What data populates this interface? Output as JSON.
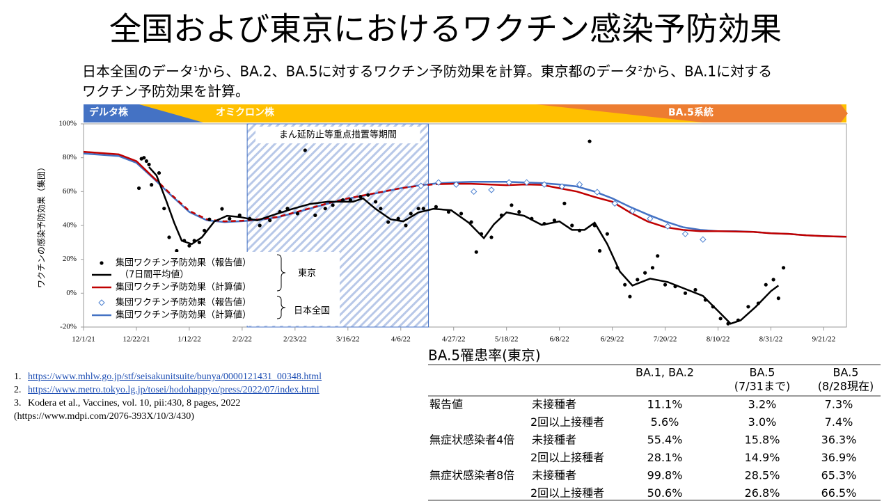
{
  "title": "全国および東京におけるワクチン感染予防効果",
  "subtitle": [
    "日本全国のデータ",
    "1",
    "から、BA.2、BA.5に対するワクチン予防効果を計算。東京都のデータ",
    "2",
    "から、BA.1に対するワクチン予防効果を計算。"
  ],
  "chart_data": {
    "type": "line",
    "ylabel": "ワクチンの感染予防効果（集団）",
    "variant_bands": [
      "デルタ株",
      "オミクロン株",
      "BA.5系統"
    ],
    "shaded_period": {
      "label": "まん延防止等重点措置等期間",
      "start": "2022-02-04",
      "end": "2022-04-17"
    },
    "xlim": [
      "2021-12-01",
      "2022-09-30"
    ],
    "xticks": [
      {
        "value": "2021-12-01",
        "label": "12/1/21"
      },
      {
        "value": "2021-12-22",
        "label": "12/22/21"
      },
      {
        "value": "2022-01-12",
        "label": "1/12/22"
      },
      {
        "value": "2022-02-02",
        "label": "2/2/22"
      },
      {
        "value": "2022-02-23",
        "label": "2/23/22"
      },
      {
        "value": "2022-03-16",
        "label": "3/16/22"
      },
      {
        "value": "2022-04-06",
        "label": "4/6/22"
      },
      {
        "value": "2022-04-27",
        "label": "4/27/22"
      },
      {
        "value": "2022-05-18",
        "label": "5/18/22"
      },
      {
        "value": "2022-06-08",
        "label": "6/8/22"
      },
      {
        "value": "2022-06-29",
        "label": "6/29/22"
      },
      {
        "value": "2022-07-20",
        "label": "7/20/22"
      },
      {
        "value": "2022-08-10",
        "label": "8/10/22"
      },
      {
        "value": "2022-08-31",
        "label": "8/31/22"
      },
      {
        "value": "2022-09-21",
        "label": "9/21/22"
      }
    ],
    "ylim": [
      -20,
      100
    ],
    "yticks": [
      {
        "value": -20,
        "label": "-20%"
      },
      {
        "value": 0,
        "label": "0%"
      },
      {
        "value": 20,
        "label": "20%"
      },
      {
        "value": 40,
        "label": "40%"
      },
      {
        "value": 60,
        "label": "60%"
      },
      {
        "value": 80,
        "label": "80%"
      },
      {
        "value": 100,
        "label": "100%"
      }
    ],
    "grid": false,
    "legend_groups": [
      "東京",
      "日本全国"
    ],
    "series": [
      {
        "name": "集団ワクチン予防効果（報告値）",
        "type": "scatter",
        "marker": "circle",
        "color": "#000000",
        "x": [
          "2021-12-23",
          "2021-12-24",
          "2021-12-25",
          "2021-12-26",
          "2021-12-27",
          "2021-12-28",
          "2021-12-31",
          "2022-01-02",
          "2022-01-04",
          "2022-01-07",
          "2022-01-10",
          "2022-01-12",
          "2022-01-14",
          "2022-01-16",
          "2022-01-18",
          "2022-01-20",
          "2022-01-25",
          "2022-01-28",
          "2022-02-01",
          "2022-02-05",
          "2022-02-09",
          "2022-02-13",
          "2022-02-17",
          "2022-02-20",
          "2022-02-24",
          "2022-02-27",
          "2022-03-03",
          "2022-03-07",
          "2022-03-10",
          "2022-03-14",
          "2022-03-17",
          "2022-03-21",
          "2022-03-24",
          "2022-03-27",
          "2022-03-29",
          "2022-04-01",
          "2022-04-05",
          "2022-04-08",
          "2022-04-10",
          "2022-04-13",
          "2022-04-15",
          "2022-04-20",
          "2022-04-25",
          "2022-04-30",
          "2022-05-04",
          "2022-05-06",
          "2022-05-08",
          "2022-05-12",
          "2022-05-16",
          "2022-05-20",
          "2022-05-23",
          "2022-05-28",
          "2022-06-02",
          "2022-06-06",
          "2022-06-10",
          "2022-06-13",
          "2022-06-16",
          "2022-06-20",
          "2022-06-22",
          "2022-06-24",
          "2022-06-27",
          "2022-07-01",
          "2022-07-04",
          "2022-07-06",
          "2022-07-09",
          "2022-07-12",
          "2022-07-15",
          "2022-07-17",
          "2022-07-20",
          "2022-07-24",
          "2022-07-28",
          "2022-08-01",
          "2022-08-05",
          "2022-08-08",
          "2022-08-11",
          "2022-08-14",
          "2022-08-18",
          "2022-08-22",
          "2022-08-26",
          "2022-08-29",
          "2022-09-01",
          "2022-09-03",
          "2022-09-05"
        ],
        "values": [
          62,
          79.4,
          80,
          78,
          76,
          64,
          71,
          50,
          33,
          25,
          31,
          28,
          31,
          30,
          37,
          43.6,
          49.8,
          44,
          46,
          44,
          40,
          43,
          48,
          50,
          47,
          84.4,
          46,
          50,
          52,
          55,
          55,
          57,
          58,
          54,
          50,
          42,
          44,
          40,
          47,
          50,
          50,
          51,
          48,
          47,
          42,
          24.3,
          35,
          33,
          46,
          52,
          48,
          44,
          41,
          43,
          53,
          40,
          37,
          89.7,
          40,
          25,
          35,
          15,
          5,
          -2,
          8,
          12,
          15,
          22,
          5,
          4,
          0,
          2,
          -4,
          -8,
          -15,
          -18,
          -16,
          -8,
          -6,
          5,
          8,
          -3,
          15
        ]
      },
      {
        "name": "（7日間平均値）",
        "type": "line",
        "color": "#000000",
        "x": [
          "2021-12-27",
          "2021-12-30",
          "2022-01-03",
          "2022-01-06",
          "2022-01-09",
          "2022-01-13",
          "2022-01-17",
          "2022-01-22",
          "2022-01-27",
          "2022-02-01",
          "2022-02-08",
          "2022-02-15",
          "2022-02-22",
          "2022-03-01",
          "2022-03-08",
          "2022-03-15",
          "2022-03-18",
          "2022-03-22",
          "2022-03-27",
          "2022-04-02",
          "2022-04-07",
          "2022-04-13",
          "2022-04-19",
          "2022-04-26",
          "2022-05-03",
          "2022-05-09",
          "2022-05-13",
          "2022-05-18",
          "2022-05-25",
          "2022-06-01",
          "2022-06-08",
          "2022-06-13",
          "2022-06-18",
          "2022-06-22",
          "2022-06-27",
          "2022-07-02",
          "2022-07-07",
          "2022-07-14",
          "2022-07-21",
          "2022-07-28",
          "2022-08-04",
          "2022-08-11",
          "2022-08-15",
          "2022-08-19",
          "2022-08-25",
          "2022-08-31",
          "2022-09-03"
        ],
        "values": [
          74.5,
          69.5,
          54,
          41.6,
          31,
          29,
          33,
          42.4,
          45.7,
          45,
          43,
          46.5,
          49.8,
          52.7,
          54,
          54,
          54,
          56,
          49.8,
          43.6,
          42.4,
          47.7,
          49.8,
          49,
          41.6,
          32.5,
          40.7,
          47.7,
          45.7,
          40.3,
          42.4,
          37.4,
          37.4,
          41.6,
          29,
          12.8,
          4.5,
          8.6,
          6.6,
          2.5,
          -1.6,
          -12,
          -18,
          -16,
          -8,
          1.2,
          4.5
        ]
      },
      {
        "name": "集団ワクチン予防効果（計算値）",
        "type": "line",
        "color": "#c00000",
        "dashed": [
          "2021-12-24",
          "2022-04-13"
        ],
        "x": [
          "2021-12-01",
          "2021-12-15",
          "2021-12-22",
          "2021-12-29",
          "2022-01-05",
          "2022-01-12",
          "2022-01-19",
          "2022-01-26",
          "2022-02-02",
          "2022-02-09",
          "2022-02-16",
          "2022-02-23",
          "2022-03-02",
          "2022-03-09",
          "2022-03-16",
          "2022-03-23",
          "2022-03-30",
          "2022-04-06",
          "2022-04-13",
          "2022-04-20",
          "2022-04-27",
          "2022-05-04",
          "2022-05-11",
          "2022-05-18",
          "2022-05-25",
          "2022-06-01",
          "2022-06-08",
          "2022-06-15",
          "2022-06-22",
          "2022-06-29",
          "2022-07-06",
          "2022-07-13",
          "2022-07-20",
          "2022-07-27",
          "2022-08-03",
          "2022-08-10",
          "2022-08-17",
          "2022-08-24",
          "2022-08-31",
          "2022-09-07",
          "2022-09-14",
          "2022-09-21",
          "2022-09-30"
        ],
        "values": [
          83.5,
          82,
          78,
          68,
          58,
          48.6,
          43.6,
          42.4,
          42.8,
          43.6,
          45,
          47.7,
          50.6,
          53.5,
          56,
          58,
          60,
          62,
          63.4,
          64.4,
          64.6,
          64.6,
          64.2,
          63.8,
          64.2,
          64,
          62,
          60,
          56.8,
          54,
          47.7,
          42.4,
          39,
          37.4,
          36.6,
          36.6,
          36.4,
          36.2,
          35.4,
          35,
          34.2,
          33.7,
          33.3
        ]
      },
      {
        "name": "集団ワクチン予防効果（報告値）",
        "type": "scatter",
        "marker": "diamond",
        "color": "#4a7fd0",
        "x": [
          "2022-04-14",
          "2022-04-21",
          "2022-04-28",
          "2022-05-05",
          "2022-05-12",
          "2022-05-19",
          "2022-05-26",
          "2022-06-02",
          "2022-06-09",
          "2022-06-16",
          "2022-06-23",
          "2022-06-30",
          "2022-07-07",
          "2022-07-14",
          "2022-07-21",
          "2022-07-28",
          "2022-08-04"
        ],
        "values": [
          63.4,
          65.4,
          64.2,
          60,
          61,
          65.4,
          65.4,
          64.2,
          63,
          64.2,
          59.7,
          53,
          48.6,
          44,
          39.5,
          35,
          31.7
        ]
      },
      {
        "name": "集団ワクチン予防効果（計算値）",
        "type": "line",
        "color": "#4472c4",
        "x": [
          "2021-12-01",
          "2021-12-15",
          "2021-12-22",
          "2021-12-29",
          "2022-01-05",
          "2022-01-12",
          "2022-01-19",
          "2022-01-26",
          "2022-02-02",
          "2022-02-09",
          "2022-02-16",
          "2022-02-23",
          "2022-03-02",
          "2022-03-09",
          "2022-03-16",
          "2022-03-23",
          "2022-03-30",
          "2022-04-06",
          "2022-04-13",
          "2022-04-20",
          "2022-04-27",
          "2022-05-04",
          "2022-05-11",
          "2022-05-18",
          "2022-05-25",
          "2022-06-01",
          "2022-06-08",
          "2022-06-15",
          "2022-06-22",
          "2022-06-29",
          "2022-07-06",
          "2022-07-13",
          "2022-07-20",
          "2022-07-27",
          "2022-08-03",
          "2022-08-10",
          "2022-08-17",
          "2022-08-24",
          "2022-08-31",
          "2022-09-07",
          "2022-09-14",
          "2022-09-21",
          "2022-09-30"
        ],
        "values": [
          82.5,
          81,
          77,
          67.5,
          57.5,
          48,
          43,
          42,
          42.5,
          43.3,
          44.8,
          47.5,
          50.4,
          53.3,
          55.8,
          57.8,
          59.8,
          62,
          63.6,
          64.8,
          65.4,
          65.8,
          65.8,
          65.8,
          65.4,
          65,
          64.2,
          63,
          60,
          56,
          51,
          46.5,
          42.4,
          39,
          37.4,
          36.6,
          36.6,
          36.2,
          35.4,
          35,
          34.2,
          33.7,
          33.3
        ]
      }
    ]
  },
  "table": {
    "title": "BA.5罹患率(東京)",
    "columns": [
      [
        "BA.1, BA.2"
      ],
      [
        "BA.5",
        "(7/31まで)"
      ],
      [
        "BA.5",
        "(8/28現在)"
      ]
    ],
    "rows": [
      [
        "報告値",
        "未接種者",
        "11.1%",
        "3.2%",
        "7.3%"
      ],
      [
        null,
        "2回以上接種者",
        "5.6%",
        "3.0%",
        "7.4%"
      ],
      [
        "無症状感染者4倍",
        "未接種者",
        "55.4%",
        "15.8%",
        "36.3%"
      ],
      [
        null,
        "2回以上接種者",
        "28.1%",
        "14.9%",
        "36.9%"
      ],
      [
        "無症状感染者8倍",
        "未接種者",
        "99.8%",
        "28.5%",
        "65.3%"
      ],
      [
        null,
        "2回以上接種者",
        "50.6%",
        "26.8%",
        "66.5%"
      ]
    ]
  },
  "references": [
    {
      "num": "1.",
      "text": "https://www.mhlw.go.jp/stf/seisakunitsuite/bunya/0000121431_00348.html"
    },
    {
      "num": "2.",
      "text": "https://www.metro.tokyo.lg.jp/tosei/hodohappyo/press/2022/07/index.html"
    },
    {
      "num": "3.",
      "text": "Kodera et al., Vaccines, vol. 10, pii:430, 8 pages, 2022",
      "extra": "(https://www.mdpi.com/2076-393X/10/3/430)"
    }
  ]
}
